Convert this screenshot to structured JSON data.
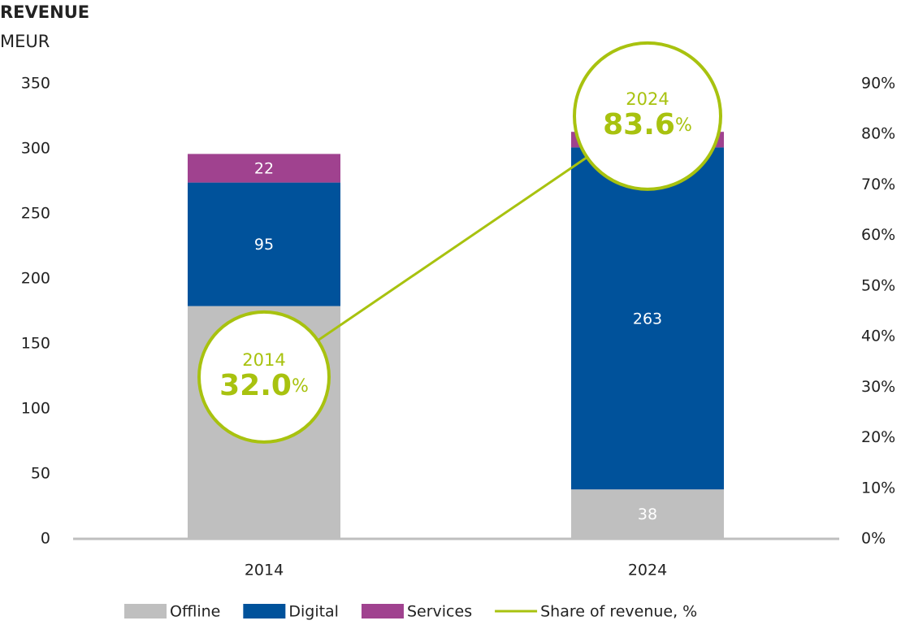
{
  "chart_data": {
    "type": "stacked_bar_line",
    "title": "REVENUE",
    "subtitle": "MEUR",
    "categories": [
      "2014",
      "2024"
    ],
    "series": [
      {
        "name": "Offline",
        "color": "#bfbfbf",
        "values": [
          179,
          38
        ]
      },
      {
        "name": "Digital",
        "color": "#00529b",
        "values": [
          95,
          263
        ]
      },
      {
        "name": "Services",
        "color": "#a0428f",
        "values": [
          22,
          12
        ]
      },
      {
        "name": "Share of revenue, %",
        "color": "#a8c20f",
        "axis": "y2",
        "values": [
          32.0,
          83.6
        ],
        "value_labels": [
          "32.0%",
          "83.6%"
        ]
      }
    ],
    "ylim": [
      0,
      350
    ],
    "yticks": [
      0,
      50,
      100,
      150,
      200,
      250,
      300,
      350
    ],
    "y2lim": [
      0,
      90
    ],
    "y2ticks": [
      {
        "value": 0,
        "label": "0%"
      },
      {
        "value": 10,
        "label": "10%"
      },
      {
        "value": 20,
        "label": "20%"
      },
      {
        "value": 30,
        "label": "30%"
      },
      {
        "value": 40,
        "label": "40%"
      },
      {
        "value": 50,
        "label": "50%"
      },
      {
        "value": 60,
        "label": "60%"
      },
      {
        "value": 70,
        "label": "70%"
      },
      {
        "value": 80,
        "label": "80%"
      },
      {
        "value": 90,
        "label": "90%"
      }
    ],
    "legend": "bottom"
  }
}
